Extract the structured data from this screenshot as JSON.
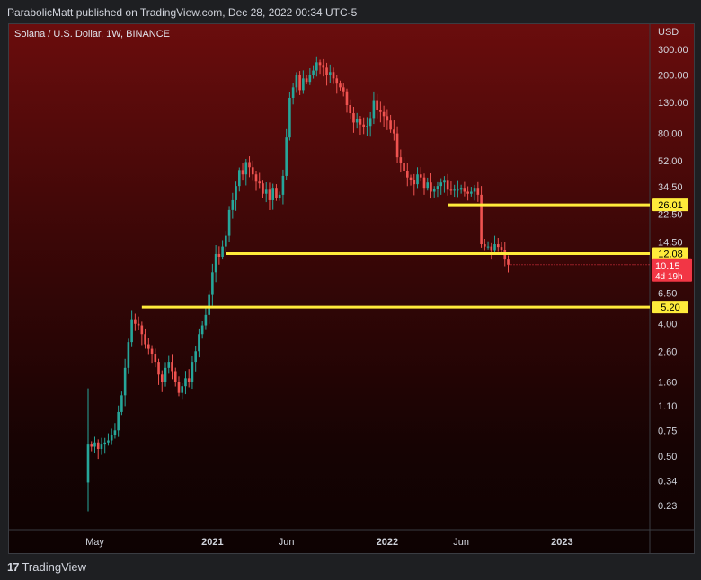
{
  "header": {
    "published": "ParabolicMatt published on TradingView.com, Dec 28, 2022 00:34 UTC-5"
  },
  "chart_title": "Solana / U.S. Dollar, 1W, BINANCE",
  "footer": {
    "logo_mark": "17",
    "logo_text": "TradingView"
  },
  "colors": {
    "up": "#26a69a",
    "down": "#ef5350",
    "level_line": "#ffeb3b",
    "price_tag": "#f23645"
  },
  "chart_data": {
    "type": "candlestick",
    "scale": "log",
    "currency": "USD",
    "y_ticks": [
      300.0,
      200.0,
      130.0,
      80.0,
      52.0,
      34.5,
      22.5,
      14.5,
      6.5,
      4.0,
      2.6,
      1.6,
      1.1,
      0.75,
      0.5,
      0.34,
      0.23
    ],
    "y_tick_labels": [
      "300.00",
      "200.00",
      "130.00",
      "80.00",
      "52.00",
      "34.50",
      "22.50",
      "14.50",
      "6.50",
      "4.00",
      "2.60",
      "1.60",
      "1.10",
      "0.75",
      "0.50",
      "0.34",
      "0.23"
    ],
    "x_ticks": [
      {
        "label": "May",
        "week": 2
      },
      {
        "label": "2021",
        "week": 37
      },
      {
        "label": "Jun",
        "week": 59
      },
      {
        "label": "2022",
        "week": 89
      },
      {
        "label": "Jun",
        "week": 111
      },
      {
        "label": "2023",
        "week": 141
      }
    ],
    "levels": [
      {
        "label": "26.01",
        "value": 26.01,
        "start_week": 107
      },
      {
        "label": "12.08",
        "value": 12.08,
        "start_week": 41
      },
      {
        "label": "5.20",
        "value": 5.2,
        "start_week": 16
      }
    ],
    "last_price": {
      "label": "10.15",
      "value": 10.15,
      "countdown": "4d 19h"
    },
    "weekly_closes": [
      0.6,
      0.58,
      0.62,
      0.56,
      0.6,
      0.62,
      0.64,
      0.7,
      0.75,
      1.0,
      1.3,
      2.0,
      3.0,
      4.3,
      4.0,
      3.9,
      3.4,
      2.9,
      2.7,
      2.5,
      2.2,
      1.8,
      1.6,
      2.0,
      2.2,
      1.9,
      1.6,
      1.35,
      1.5,
      1.7,
      1.6,
      2.2,
      2.6,
      3.4,
      3.9,
      4.6,
      6.3,
      9.0,
      12.0,
      11.5,
      13.5,
      16.0,
      24.0,
      28.0,
      35.0,
      45.0,
      42.0,
      51.0,
      47.0,
      42.0,
      37.5,
      36.5,
      31.0,
      33.0,
      28.0,
      34.0,
      29.0,
      30.5,
      41.0,
      75.0,
      140.0,
      165.0,
      200.0,
      158.0,
      190.0,
      180.0,
      200.0,
      215.0,
      245.0,
      235.0,
      225.0,
      200.0,
      210.0,
      190.0,
      175.0,
      165.0,
      155.0,
      125.0,
      110.0,
      95.0,
      100.0,
      92.0,
      88.0,
      90.0,
      102.0,
      135.0,
      116.0,
      112.0,
      105.0,
      98.0,
      85.0,
      80.0,
      55.0,
      50.0,
      44.0,
      40.0,
      38.5,
      36.0,
      42.0,
      40.0,
      34.0,
      37.0,
      32.0,
      33.5,
      35.0,
      37.0,
      38.0,
      33.0,
      32.5,
      33.0,
      33.0,
      34.0,
      32.0,
      31.0,
      32.0,
      34.0,
      30.5,
      14.0,
      13.5,
      13.5,
      12.6,
      14.0,
      13.4,
      12.8,
      11.0,
      10.15
    ]
  }
}
